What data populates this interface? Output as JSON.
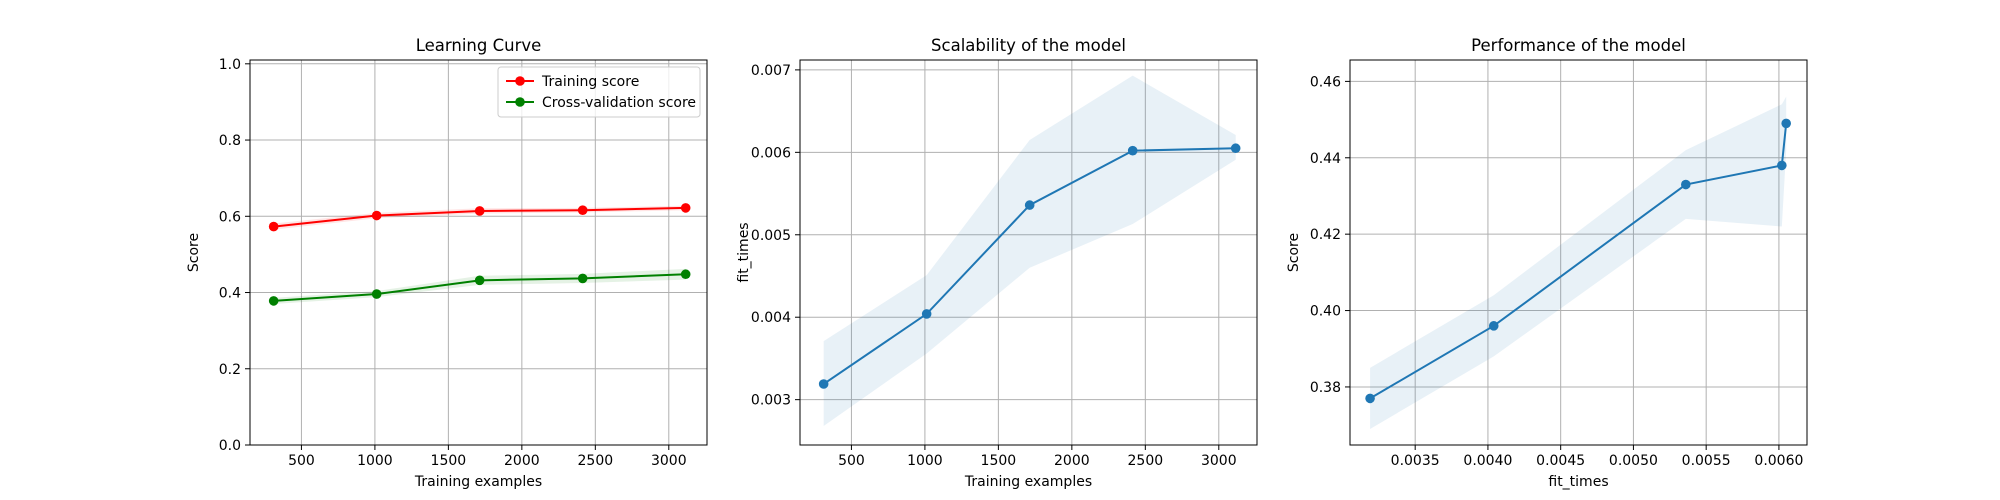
{
  "chart_data": [
    {
      "type": "line",
      "title": "Learning Curve",
      "xlabel": "Training examples",
      "ylabel": "Score",
      "xlim": [
        150,
        3260
      ],
      "ylim": [
        0.0,
        1.01
      ],
      "xticks": [
        500,
        1000,
        1500,
        2000,
        2500,
        3000
      ],
      "xtick_labels": [
        "500",
        "1000",
        "1500",
        "2000",
        "2500",
        "3000"
      ],
      "yticks": [
        0.0,
        0.2,
        0.4,
        0.6,
        0.8,
        1.0
      ],
      "ytick_labels": [
        "0.0",
        "0.2",
        "0.4",
        "0.6",
        "0.8",
        "1.0"
      ],
      "grid": true,
      "legend": "top-right",
      "x": [
        311,
        1012,
        1713,
        2414,
        3115
      ],
      "series": [
        {
          "name": "Training score",
          "color": "#ff0000",
          "marker": "circle",
          "values": [
            0.573,
            0.602,
            0.614,
            0.616,
            0.622
          ],
          "band_low": [
            0.565,
            0.595,
            0.607,
            0.61,
            0.616
          ],
          "band_high": [
            0.581,
            0.609,
            0.621,
            0.622,
            0.628
          ]
        },
        {
          "name": "Cross-validation score",
          "color": "#008000",
          "marker": "circle",
          "values": [
            0.378,
            0.396,
            0.432,
            0.437,
            0.448
          ],
          "band_low": [
            0.37,
            0.388,
            0.42,
            0.425,
            0.434
          ],
          "band_high": [
            0.386,
            0.404,
            0.444,
            0.449,
            0.462
          ]
        }
      ]
    },
    {
      "type": "line",
      "title": "Scalability of the model",
      "xlabel": "Training examples",
      "ylabel": "fit_times",
      "xlim": [
        150,
        3260
      ],
      "ylim": [
        0.00245,
        0.00712
      ],
      "xticks": [
        500,
        1000,
        1500,
        2000,
        2500,
        3000
      ],
      "xtick_labels": [
        "500",
        "1000",
        "1500",
        "2000",
        "2500",
        "3000"
      ],
      "yticks": [
        0.003,
        0.004,
        0.005,
        0.006,
        0.007
      ],
      "ytick_labels": [
        "0.003",
        "0.004",
        "0.005",
        "0.006",
        "0.007"
      ],
      "grid": true,
      "x": [
        311,
        1012,
        1713,
        2414,
        3115
      ],
      "series": [
        {
          "color": "#1f77b4",
          "marker": "circle",
          "values": [
            0.00319,
            0.00404,
            0.00536,
            0.00602,
            0.00605
          ],
          "band_low": [
            0.00268,
            0.00356,
            0.0046,
            0.00513,
            0.00591
          ],
          "band_high": [
            0.00371,
            0.00451,
            0.00615,
            0.00693,
            0.00621
          ]
        }
      ]
    },
    {
      "type": "line",
      "title": "Performance of the model",
      "xlabel": "fit_times",
      "ylabel": "Score",
      "xlim": [
        0.003052,
        0.006193
      ],
      "ylim": [
        0.3648,
        0.4656
      ],
      "xticks": [
        0.0035,
        0.004,
        0.0045,
        0.005,
        0.0055,
        0.006
      ],
      "xtick_labels": [
        "0.0035",
        "0.0040",
        "0.0045",
        "0.0050",
        "0.0055",
        "0.0060"
      ],
      "yticks": [
        0.38,
        0.4,
        0.42,
        0.44,
        0.46
      ],
      "ytick_labels": [
        "0.38",
        "0.40",
        "0.42",
        "0.44",
        "0.46"
      ],
      "grid": true,
      "x": [
        0.00319,
        0.00404,
        0.00536,
        0.00602,
        0.00605
      ],
      "series": [
        {
          "color": "#1f77b4",
          "marker": "circle",
          "values": [
            0.377,
            0.396,
            0.433,
            0.438,
            0.449
          ],
          "band_low": [
            0.369,
            0.388,
            0.424,
            0.422,
            0.442
          ],
          "band_high": [
            0.385,
            0.404,
            0.442,
            0.454,
            0.456
          ]
        }
      ]
    }
  ]
}
